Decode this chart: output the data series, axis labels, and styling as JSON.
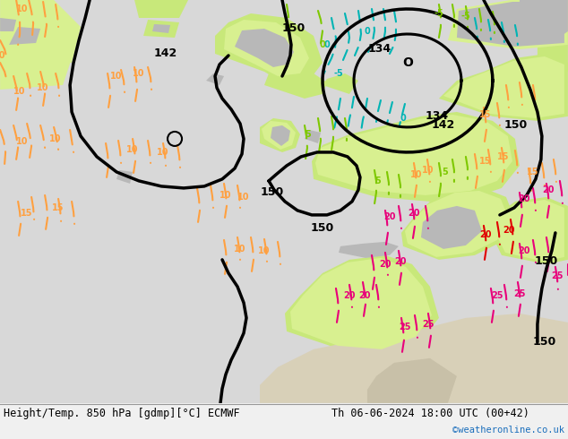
{
  "title_left": "Height/Temp. 850 hPa [gdmp][°C] ECMWF",
  "title_right": "Th 06-06-2024 18:00 UTC (00+42)",
  "credit": "©weatheronline.co.uk",
  "bg_ocean": "#d8d8d8",
  "bg_land_green": "#c8e87a",
  "bg_land_light_green": "#d8f090",
  "bg_gray_terrain": "#b8b8b8",
  "bottom_bar_color": "#f0f0f0",
  "credit_color": "#1a6ebc",
  "geo_color": "#000000",
  "cyan_color": "#00b4b4",
  "green_color": "#7ec800",
  "orange_color": "#ffa040",
  "pink_color": "#e8007a",
  "red_color": "#e00000",
  "black_color": "#000000"
}
